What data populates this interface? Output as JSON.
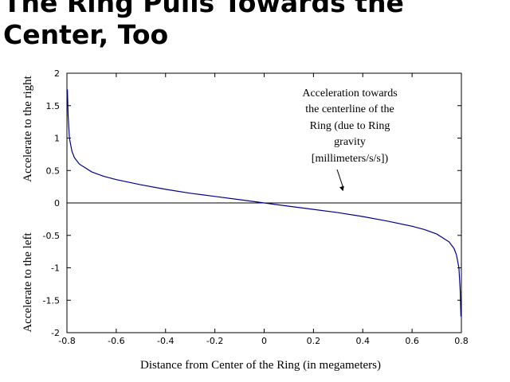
{
  "slide": {
    "title_lines": [
      "The Ring Pulls Towards the",
      "Center, Too"
    ]
  },
  "colors": {
    "curve": "#00008b",
    "axis": "#000000",
    "background": "#ffffff"
  },
  "chart_data": {
    "type": "line",
    "xlabel": "Distance from Center of the Ring (in megameters)",
    "ylabel_upper": "Accelerate to the right",
    "ylabel_lower": "Accelerate to the left",
    "xlim": [
      -0.8,
      0.8
    ],
    "ylim": [
      -2,
      2
    ],
    "x_ticks": [
      -0.8,
      -0.6,
      -0.4,
      -0.2,
      0,
      0.2,
      0.4,
      0.6,
      0.8
    ],
    "x_tick_labels": [
      "-0.8",
      "-0.6",
      "-0.4",
      "-0.2",
      "0",
      "0.2",
      "0.4",
      "0.6",
      "0.8"
    ],
    "y_ticks": [
      2,
      1.5,
      1,
      0.5,
      0,
      -0.5,
      -1,
      -1.5,
      -2
    ],
    "y_tick_labels": [
      "2",
      "1.5",
      "1",
      "0.5",
      "0",
      "-0.5",
      "-1",
      "-1.5",
      "-2"
    ],
    "grid": false,
    "reference_line": {
      "y": 0
    },
    "annotation": {
      "lines": [
        "Acceleration towards",
        "the centerline of the",
        "Ring (due to Ring",
        "gravity",
        "[millimeters/s/s])"
      ],
      "points_to": {
        "x": 0.32,
        "y": 0.18
      }
    },
    "series": [
      {
        "x": [
          -0.798,
          -0.795,
          -0.79,
          -0.78,
          -0.77,
          -0.76,
          -0.75,
          -0.7,
          -0.65,
          -0.6,
          -0.5,
          -0.4,
          -0.3,
          -0.2,
          -0.1,
          0,
          0.1,
          0.2,
          0.3,
          0.4,
          0.5,
          0.6,
          0.65,
          0.7,
          0.75,
          0.76,
          0.77,
          0.78,
          0.79,
          0.795,
          0.798
        ],
        "y": [
          1.75,
          1.35,
          1.0,
          0.8,
          0.7,
          0.65,
          0.6,
          0.48,
          0.41,
          0.36,
          0.28,
          0.21,
          0.15,
          0.1,
          0.05,
          0,
          -0.05,
          -0.1,
          -0.15,
          -0.21,
          -0.28,
          -0.36,
          -0.41,
          -0.48,
          -0.6,
          -0.65,
          -0.7,
          -0.8,
          -1.0,
          -1.35,
          -1.75
        ]
      }
    ]
  }
}
